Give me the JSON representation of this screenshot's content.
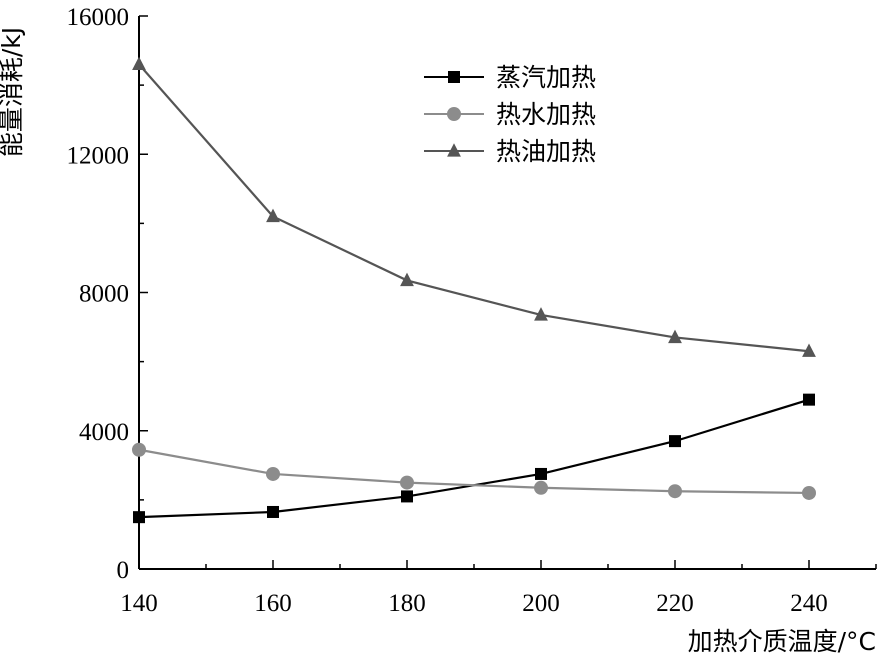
{
  "chart_data": {
    "type": "line",
    "title": "",
    "xlabel": "加热介质温度/°C",
    "ylabel": "能量消耗/kJ",
    "x": [
      140,
      160,
      180,
      200,
      220,
      240
    ],
    "xticks": [
      "140",
      "160",
      "180",
      "200",
      "220",
      "240"
    ],
    "yticks": [
      "0",
      "4000",
      "8000",
      "12000",
      "16000"
    ],
    "xlim": [
      140,
      250
    ],
    "ylim": [
      0,
      16000
    ],
    "grid": false,
    "legend_position": "top-center",
    "series": [
      {
        "name": "蒸汽加热",
        "marker": "square",
        "color": "#000000",
        "values": [
          1500,
          1650,
          2100,
          2750,
          3700,
          4900
        ]
      },
      {
        "name": "热水加热",
        "marker": "circle",
        "color": "#8c8c8c",
        "values": [
          3450,
          2750,
          2500,
          2350,
          2250,
          2200
        ]
      },
      {
        "name": "热油加热",
        "marker": "triangle",
        "color": "#555555",
        "values": [
          14600,
          10200,
          8350,
          7350,
          6700,
          6300
        ]
      }
    ]
  }
}
